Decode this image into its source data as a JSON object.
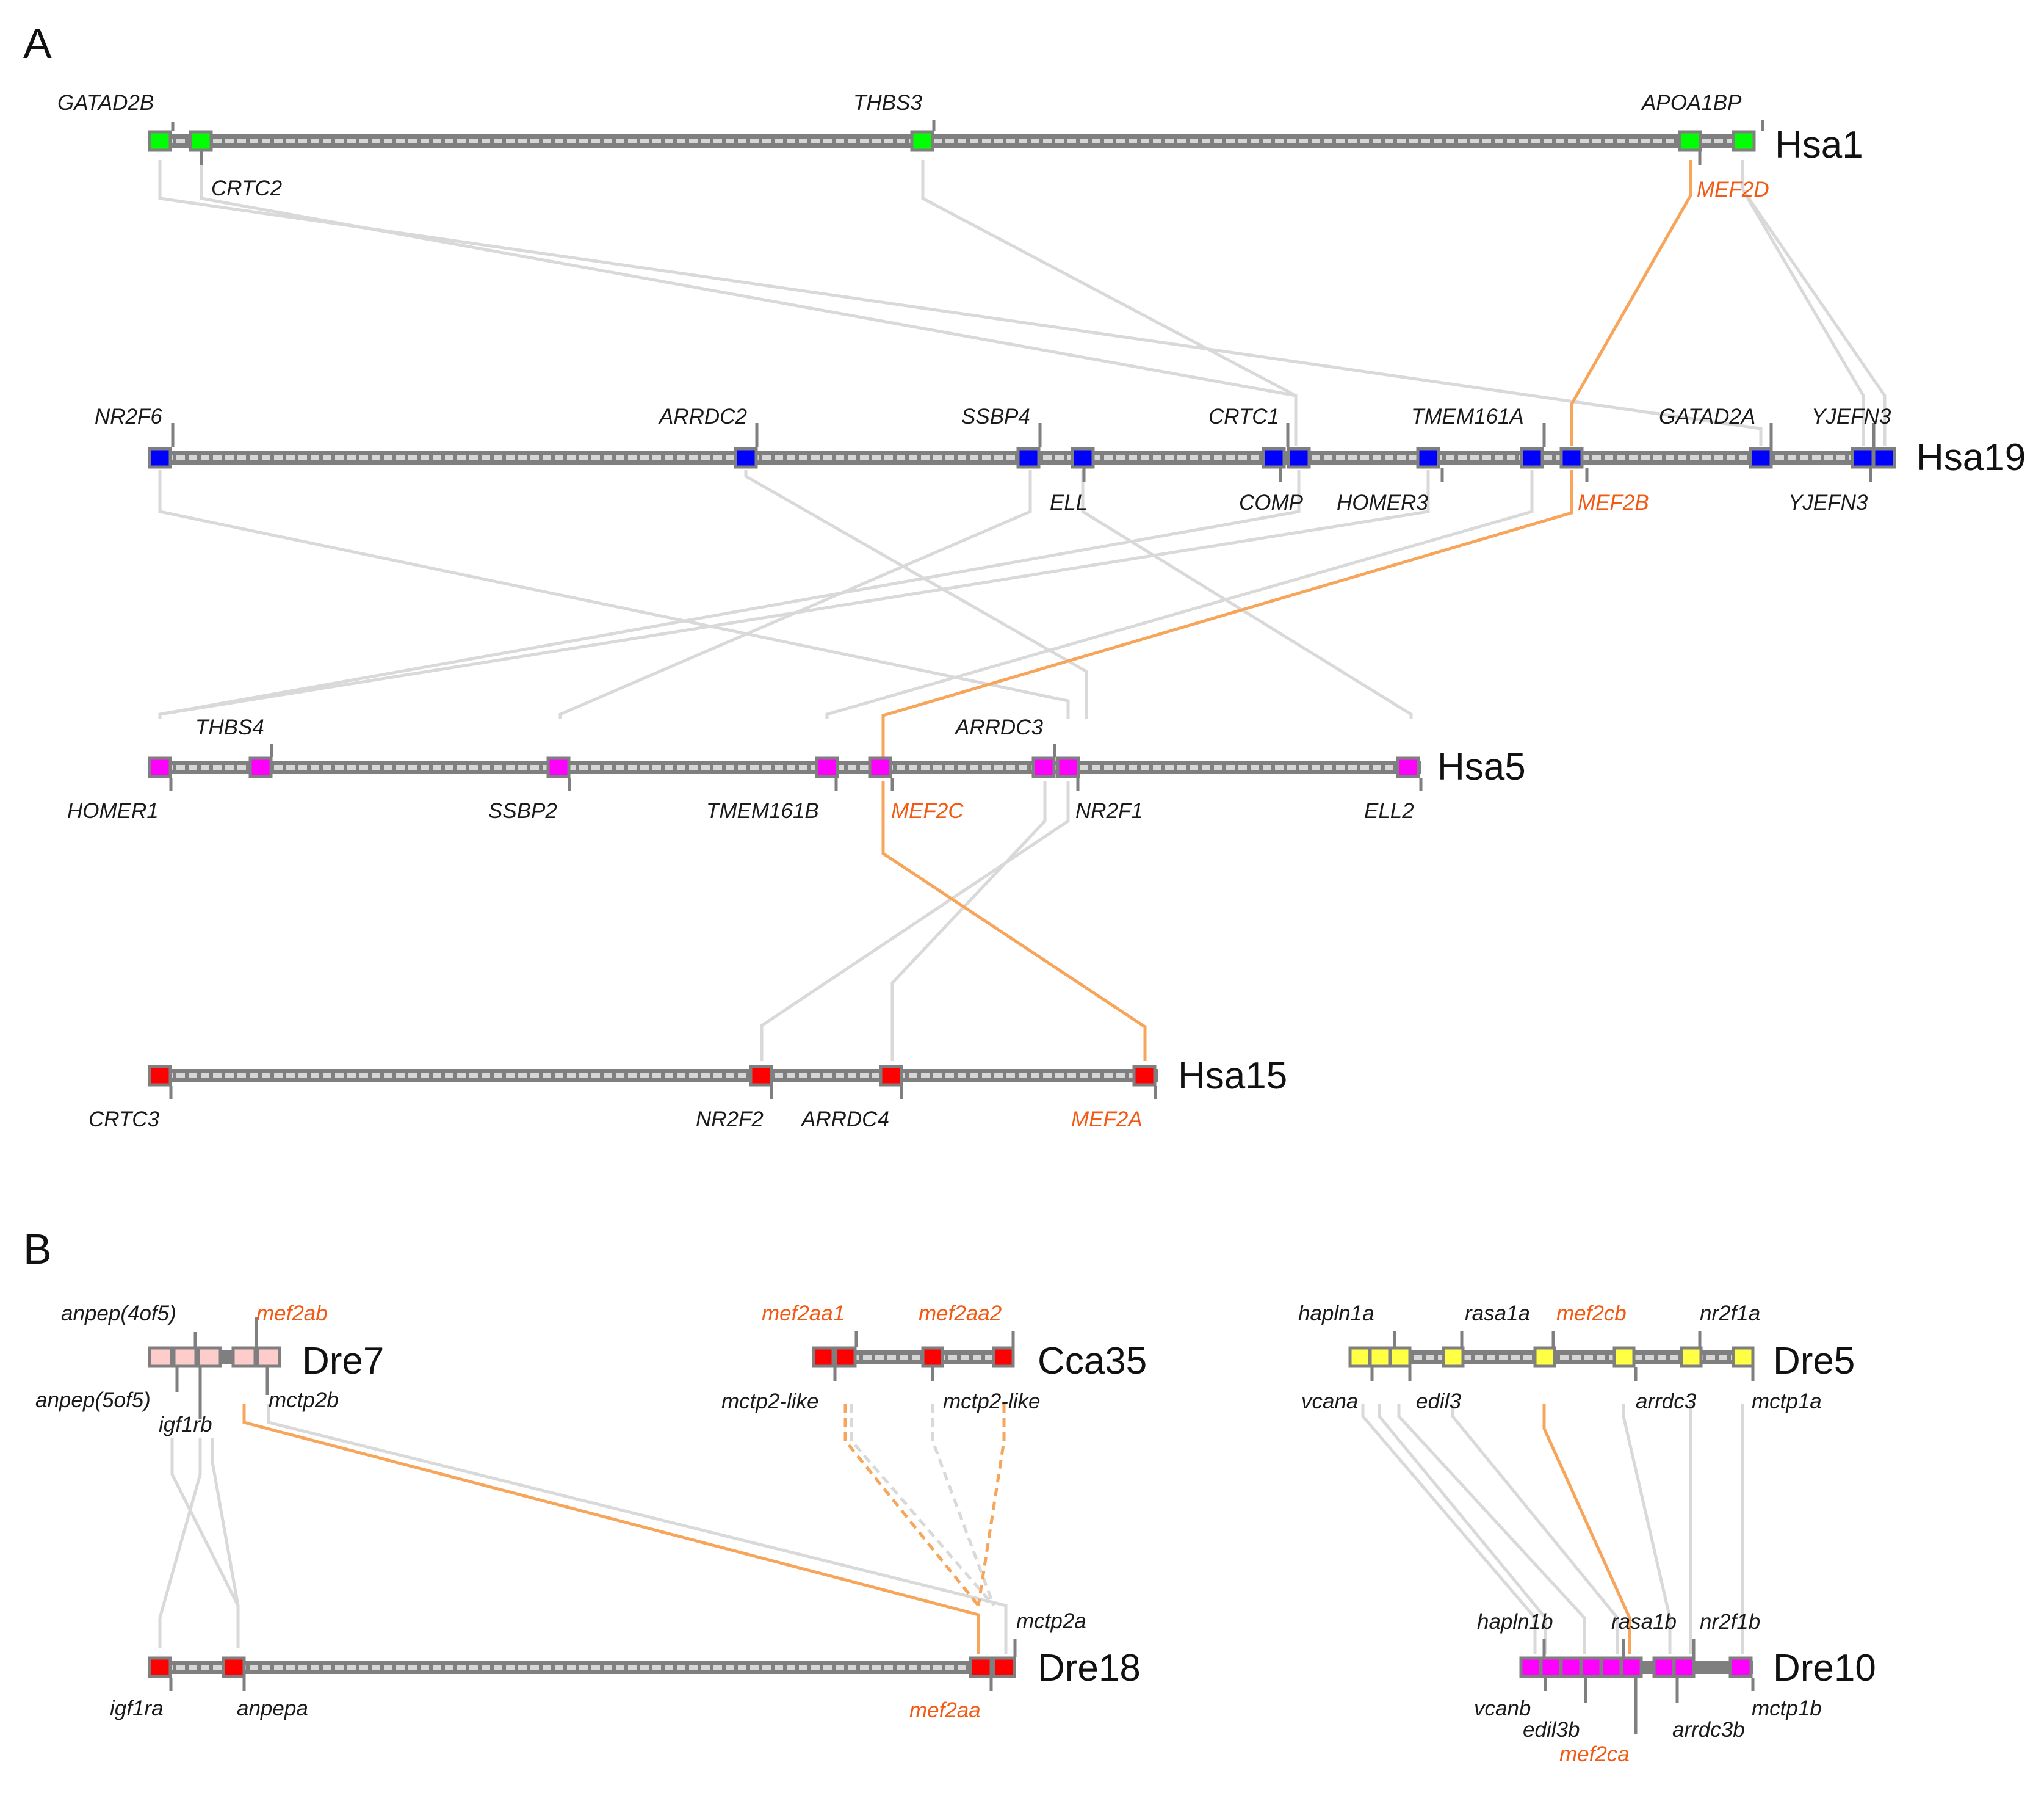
{
  "panels": [
    {
      "label": "A"
    },
    {
      "label": "B"
    }
  ],
  "colors": {
    "hsa1": "#00ff00",
    "hsa19": "#0000ff",
    "hsa5": "#ff00ff",
    "hsa15": "#ff0000",
    "dre7": "#ffcccc",
    "cca35": "#ff0000",
    "dre18": "#ff0000",
    "dre5": "#ffff44",
    "dre10": "#ff00ff",
    "mef_label": "#f25a13",
    "mef_link": "#f7a55a",
    "link": "#d9d9d9",
    "bar": "#7f7f7f"
  },
  "chromosomes": [
    {
      "id": "hsa1",
      "name": "Hsa1"
    },
    {
      "id": "hsa19",
      "name": "Hsa19"
    },
    {
      "id": "hsa5",
      "name": "Hsa5"
    },
    {
      "id": "hsa15",
      "name": "Hsa15"
    },
    {
      "id": "dre7",
      "name": "Dre7"
    },
    {
      "id": "cca35",
      "name": "Cca35"
    },
    {
      "id": "dre18",
      "name": "Dre18"
    },
    {
      "id": "dre5",
      "name": "Dre5"
    },
    {
      "id": "dre10",
      "name": "Dre10"
    }
  ],
  "genes": {
    "hsa1": [
      "GATAD2B",
      "CRTC2",
      "THBS3",
      "APOA1BP",
      "MEF2D"
    ],
    "hsa19": [
      "NR2F6",
      "ARRDC2",
      "SSBP4",
      "ELL",
      "CRTC1",
      "COMP",
      "HOMER3",
      "TMEM161A",
      "MEF2B",
      "GATAD2A",
      "YJEFN3",
      "YJEFN3"
    ],
    "hsa5": [
      "HOMER1",
      "THBS4",
      "SSBP2",
      "TMEM161B",
      "MEF2C",
      "ARRDC3",
      "NR2F1",
      "ELL2"
    ],
    "hsa15": [
      "CRTC3",
      "NR2F2",
      "ARRDC4",
      "MEF2A"
    ],
    "dre7": [
      "anpep(5of5)",
      "anpep(4of5)",
      "igf1rb",
      "mef2ab",
      "mctp2b"
    ],
    "cca35": [
      "mef2aa1",
      "mctp2-like",
      "mef2aa2",
      "mctp2-like"
    ],
    "dre18": [
      "igf1ra",
      "anpepa",
      "mef2aa",
      "mctp2a"
    ],
    "dre5": [
      "hapln1a",
      "vcana",
      "edil3",
      "rasa1a",
      "mef2cb",
      "arrdc3",
      "nr2f1a",
      "mctp1a"
    ],
    "dre10": [
      "vcanb",
      "hapln1b",
      "edil3b",
      "mef2ca",
      "rasa1b",
      "nr2f1b",
      "arrdc3b",
      "mctp1b"
    ]
  }
}
